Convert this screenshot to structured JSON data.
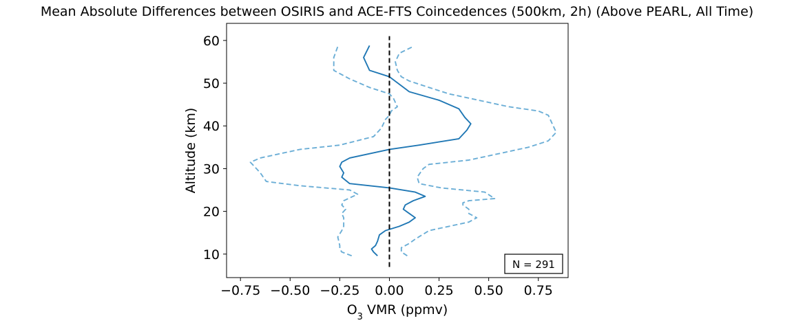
{
  "chart_data": {
    "type": "line",
    "title": "Mean Absolute Differences between OSIRIS and ACE-FTS Coincedences (500km, 2h) (Above PEARL, All Time)",
    "xlabel_main": "O",
    "xlabel_sub": "3",
    "xlabel_rest": " VMR (ppmv)",
    "ylabel": "Altitude (km)",
    "xlim": [
      -0.82,
      0.9
    ],
    "ylim": [
      4.5,
      64
    ],
    "xticks": [
      -0.75,
      -0.5,
      -0.25,
      0.0,
      0.25,
      0.5,
      0.75
    ],
    "xtick_labels": [
      "−0.75",
      "−0.50",
      "−0.25",
      "0.00",
      "0.25",
      "0.50",
      "0.75"
    ],
    "yticks": [
      10,
      20,
      30,
      40,
      50,
      60
    ],
    "ytick_labels": [
      "10",
      "20",
      "30",
      "40",
      "50",
      "60"
    ],
    "annotation": "N = 291",
    "annotation_position": "bottom-right",
    "colors": {
      "mean": "#1f77b4",
      "bounds": "#6baed6",
      "zero": "#000000"
    },
    "series": [
      {
        "style": "solid",
        "x": [
          -0.06,
          -0.08,
          -0.09,
          -0.07,
          -0.06,
          -0.05,
          -0.02,
          0.05,
          0.1,
          0.13,
          0.1,
          0.07,
          0.08,
          0.12,
          0.18,
          0.13,
          0.0,
          -0.2,
          -0.24,
          -0.23,
          -0.25,
          -0.24,
          -0.2,
          -0.1,
          0.0,
          0.15,
          0.35,
          0.39,
          0.41,
          0.38,
          0.35,
          0.25,
          0.1,
          0.0,
          -0.1,
          -0.12,
          -0.13,
          -0.1
        ],
        "y": [
          9.6,
          10.5,
          11.2,
          12.0,
          13.0,
          14.5,
          15.5,
          16.5,
          17.5,
          18.5,
          19.5,
          20.5,
          21.5,
          22.5,
          23.5,
          24.5,
          25.5,
          26.5,
          28.0,
          29.0,
          30.5,
          31.5,
          32.5,
          33.5,
          34.5,
          35.5,
          37.0,
          39.0,
          40.5,
          42.0,
          44.0,
          46.0,
          48.0,
          51.5,
          53.0,
          55.0,
          56.0,
          58.8
        ]
      },
      {
        "style": "dashed",
        "x": [
          -0.19,
          -0.24,
          -0.25,
          -0.25,
          -0.26,
          -0.24,
          -0.23,
          -0.23,
          -0.24,
          -0.22,
          -0.24,
          -0.23,
          -0.16,
          -0.2,
          -0.45,
          -0.62,
          -0.65,
          -0.67,
          -0.7,
          -0.65,
          -0.45,
          -0.25,
          -0.08,
          -0.04,
          -0.02,
          0.0,
          0.01,
          0.04,
          0.02,
          0.0,
          -0.1,
          -0.2,
          -0.28,
          -0.28,
          -0.26
        ],
        "y": [
          9.6,
          10.5,
          11.2,
          12.0,
          14.0,
          15.5,
          16.5,
          18.5,
          19.5,
          20.5,
          21.5,
          22.5,
          24.0,
          25.0,
          26.0,
          27.0,
          29.0,
          30.0,
          31.5,
          32.5,
          34.5,
          35.5,
          37.5,
          39.5,
          41.5,
          42.5,
          43.5,
          44.5,
          46.5,
          47.5,
          49.0,
          51.0,
          53.0,
          56.0,
          58.6
        ]
      },
      {
        "style": "dashed",
        "x": [
          0.09,
          0.06,
          0.06,
          0.1,
          0.13,
          0.2,
          0.3,
          0.4,
          0.44,
          0.4,
          0.4,
          0.37,
          0.37,
          0.4,
          0.53,
          0.48,
          0.26,
          0.15,
          0.14,
          0.17,
          0.2,
          0.4,
          0.55,
          0.7,
          0.8,
          0.84,
          0.82,
          0.8,
          0.75,
          0.6,
          0.45,
          0.3,
          0.2,
          0.1,
          0.06,
          0.04,
          0.03,
          0.05,
          0.12
        ],
        "y": [
          9.6,
          10.5,
          11.5,
          12.5,
          13.5,
          15.5,
          16.5,
          17.5,
          18.5,
          19.5,
          20.5,
          21.5,
          22.0,
          22.5,
          23.0,
          24.5,
          25.5,
          26.5,
          28.0,
          30.0,
          31.0,
          32.0,
          33.5,
          35.0,
          36.5,
          38.5,
          40.5,
          42.5,
          43.5,
          44.5,
          46.0,
          47.5,
          49.0,
          50.5,
          51.5,
          53.0,
          55.0,
          57.0,
          58.6
        ]
      }
    ],
    "zero_line": {
      "x": 0.0,
      "y_range": [
        7,
        61
      ]
    }
  }
}
